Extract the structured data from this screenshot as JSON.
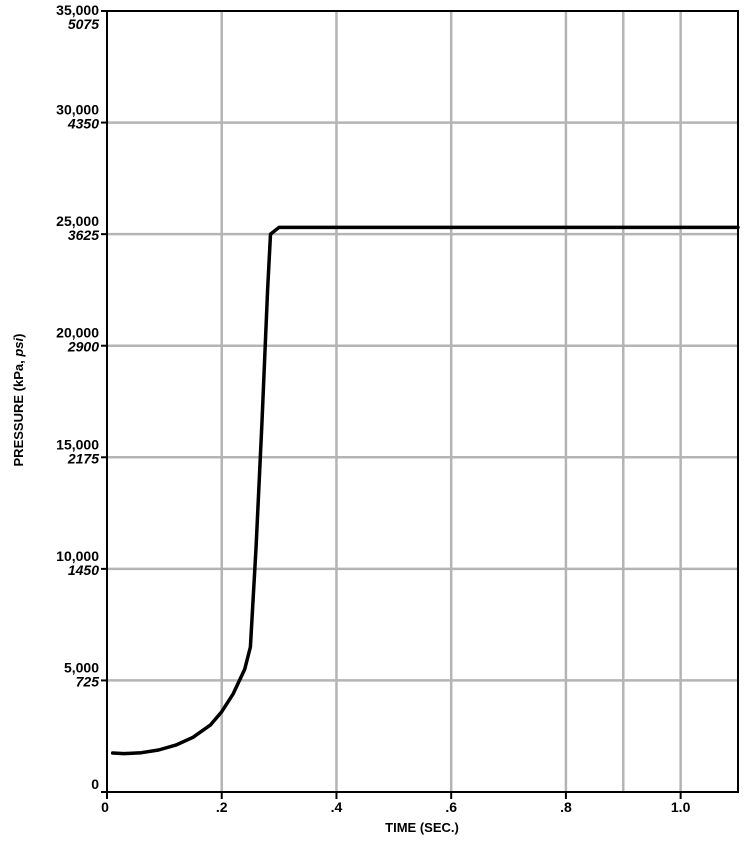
{
  "chart_data": {
    "type": "line",
    "title": "",
    "xlabel": "TIME (SEC.)",
    "ylabel": {
      "prefix": "PRESSURE (kPa, ",
      "psi": "psi",
      "suffix": ")"
    },
    "xlim": [
      0,
      1.1
    ],
    "ylim": [
      0,
      35000
    ],
    "grid": true,
    "x_ticks": [
      {
        "value": 0,
        "label": "0"
      },
      {
        "value": 0.2,
        "label": ".2"
      },
      {
        "value": 0.4,
        "label": ".4"
      },
      {
        "value": 0.6,
        "label": ".6"
      },
      {
        "value": 0.8,
        "label": ".8"
      },
      {
        "value": 1.0,
        "label": "1.0"
      }
    ],
    "y_ticks": [
      {
        "value": 0,
        "kpa": "0",
        "psi": ""
      },
      {
        "value": 5000,
        "kpa": "5,000",
        "psi": "725"
      },
      {
        "value": 10000,
        "kpa": "10,000",
        "psi": "1450"
      },
      {
        "value": 15000,
        "kpa": "15,000",
        "psi": "2175"
      },
      {
        "value": 20000,
        "kpa": "20,000",
        "psi": "2900"
      },
      {
        "value": 25000,
        "kpa": "25,000",
        "psi": "3625"
      },
      {
        "value": 30000,
        "kpa": "30,000",
        "psi": "4350"
      },
      {
        "value": 35000,
        "kpa": "35,000",
        "psi": "5075"
      }
    ],
    "series": [
      {
        "color": "#000000",
        "points": [
          [
            0.01,
            1750
          ],
          [
            0.03,
            1720
          ],
          [
            0.06,
            1760
          ],
          [
            0.09,
            1880
          ],
          [
            0.12,
            2100
          ],
          [
            0.15,
            2450
          ],
          [
            0.18,
            3000
          ],
          [
            0.2,
            3600
          ],
          [
            0.22,
            4400
          ],
          [
            0.24,
            5500
          ],
          [
            0.25,
            6500
          ],
          [
            0.26,
            11000
          ],
          [
            0.27,
            16500
          ],
          [
            0.28,
            22500
          ],
          [
            0.285,
            25000
          ],
          [
            0.3,
            25300
          ],
          [
            0.4,
            25300
          ],
          [
            0.6,
            25300
          ],
          [
            0.8,
            25300
          ],
          [
            1.0,
            25300
          ],
          [
            1.1,
            25300
          ]
        ]
      }
    ]
  }
}
